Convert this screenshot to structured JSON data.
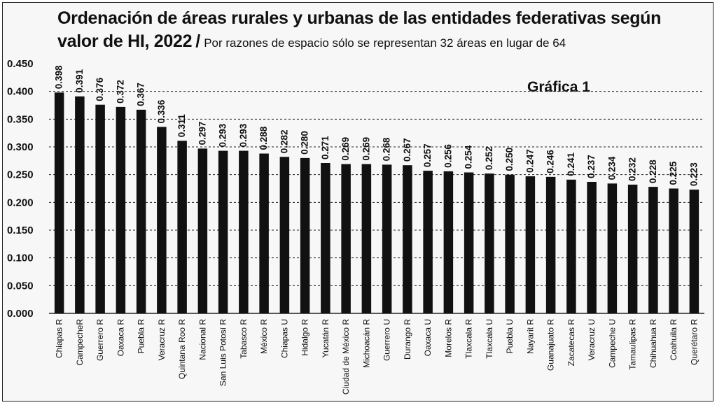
{
  "title": "Ordenación de áreas rurales y urbanas de las entidades federativas según",
  "title_line2": "valor de HI, 2022",
  "subtitle": "Por razones de espacio sólo se representan 32 áreas en lugar de 64",
  "chart_data": {
    "type": "bar",
    "title": "Ordenación de áreas rurales y urbanas de las entidades federativas según valor de HI, 2022",
    "annotation": "Gráfica 1",
    "xlabel": "",
    "ylabel": "",
    "ylim": [
      0,
      0.45
    ],
    "yticks": [
      "0.000",
      "0.050",
      "0.100",
      "0.150",
      "0.200",
      "0.250",
      "0.300",
      "0.350",
      "0.400",
      "0.450"
    ],
    "grid": "dashed horizontal",
    "categories": [
      "Chiapas R",
      "CampecheR",
      "Guerrero R",
      "Oaxaca R",
      "Puebla R",
      "Veracruz R",
      "Quintana Roo R",
      "Nacional R",
      "San Luis Potosí R",
      "Tabasco R",
      "México R",
      "Chiapas U",
      "Hidalgo R",
      "Yucatán R",
      "Ciudad de México R",
      "Michoacán R",
      "Guerrero U",
      "Durango R",
      "Oaxaca U",
      "Morelos R",
      "Tlaxcala R",
      "Tlaxcala U",
      "Puebla U",
      "Nayarit R",
      "Guanajuato R",
      "Zacatecas R",
      "Veracruz U",
      "Campeche U",
      "Tamaulipas R",
      "Chihuahua R",
      "Coahuila R",
      "Querétaro R"
    ],
    "values": [
      0.398,
      0.391,
      0.376,
      0.372,
      0.367,
      0.336,
      0.311,
      0.297,
      0.293,
      0.293,
      0.288,
      0.282,
      0.28,
      0.271,
      0.269,
      0.269,
      0.268,
      0.267,
      0.257,
      0.256,
      0.254,
      0.252,
      0.25,
      0.247,
      0.246,
      0.241,
      0.237,
      0.234,
      0.232,
      0.228,
      0.225,
      0.223
    ],
    "labels": [
      "0.398",
      "0.391",
      "0.376",
      "0.372",
      "0.367",
      "0.336",
      "0.311",
      "0.297",
      "0.293",
      "0.293",
      "0.288",
      "0.282",
      "0.280",
      "0.271",
      "0.269",
      "0.269",
      "0.268",
      "0.267",
      "0.257",
      "0.256",
      "0.254",
      "0.252",
      "0.250",
      "0.247",
      "0.246",
      "0.241",
      "0.237",
      "0.234",
      "0.232",
      "0.228",
      "0.225",
      "0.223"
    ],
    "colors": {
      "bar": "#111111",
      "grid": "#222222",
      "text": "#111111"
    }
  }
}
